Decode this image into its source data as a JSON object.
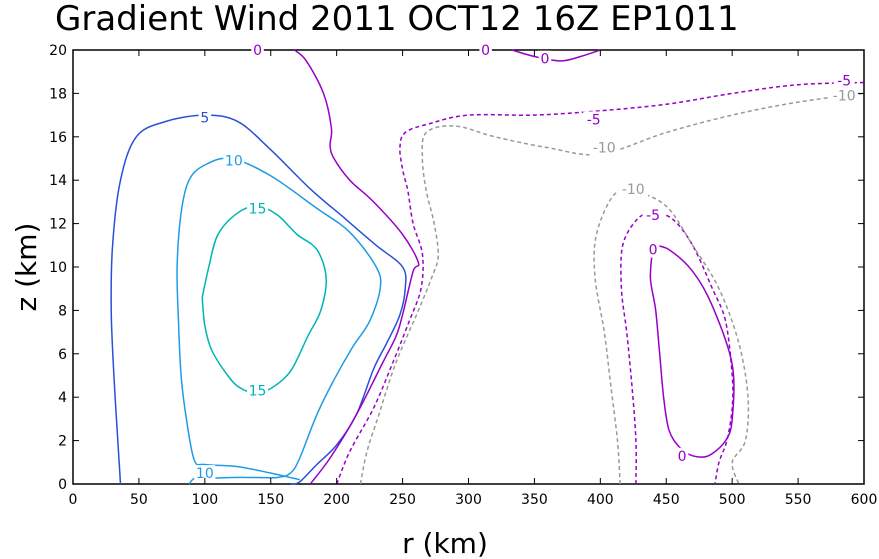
{
  "chart_data": {
    "type": "contour",
    "title": "Gradient Wind 2011 OCT12 16Z  EP1011",
    "xlabel": "r (km)",
    "ylabel": "z (km)",
    "xlim": [
      0,
      600
    ],
    "ylim": [
      0,
      20
    ],
    "xticks": [
      "0",
      "50",
      "100",
      "150",
      "200",
      "250",
      "300",
      "350",
      "400",
      "450",
      "500",
      "550",
      "600"
    ],
    "yticks": [
      "0",
      "2",
      "4",
      "6",
      "8",
      "10",
      "12",
      "14",
      "16",
      "18",
      "20"
    ],
    "contours": [
      {
        "level": 15,
        "name": "contour-15",
        "color": "#00b4b4",
        "dashed": false,
        "closed": true,
        "points": [
          [
            98,
            8.6
          ],
          [
            103,
            10
          ],
          [
            110,
            11.5
          ],
          [
            125,
            12.5
          ],
          [
            140,
            12.8
          ],
          [
            155,
            12.4
          ],
          [
            170,
            11.5
          ],
          [
            185,
            10.8
          ],
          [
            192,
            9.5
          ],
          [
            188,
            8
          ],
          [
            178,
            6.8
          ],
          [
            165,
            5.2
          ],
          [
            150,
            4.4
          ],
          [
            138,
            4.2
          ],
          [
            125,
            4.5
          ],
          [
            115,
            5.2
          ],
          [
            105,
            6.2
          ],
          [
            100,
            7.3
          ],
          [
            98,
            8.6
          ]
        ]
      },
      {
        "level": 10,
        "name": "contour-10",
        "color": "#1e9be6",
        "dashed": false,
        "closed": false,
        "points": [
          [
            172,
            0.2
          ],
          [
            150,
            0.5
          ],
          [
            125,
            0.8
          ],
          [
            100,
            0.9
          ],
          [
            92,
            1.1
          ],
          [
            86,
            3
          ],
          [
            82,
            5
          ],
          [
            80,
            7.5
          ],
          [
            79,
            10
          ],
          [
            82,
            12.5
          ],
          [
            88,
            14
          ],
          [
            100,
            14.7
          ],
          [
            120,
            15
          ],
          [
            150,
            14.2
          ],
          [
            185,
            12.7
          ],
          [
            210,
            11.6
          ],
          [
            230,
            10
          ],
          [
            233,
            9
          ],
          [
            225,
            7.5
          ],
          [
            212,
            6.3
          ],
          [
            198,
            4.8
          ],
          [
            185,
            3.2
          ],
          [
            172,
            1.2
          ],
          [
            165,
            0.5
          ],
          [
            155,
            0.3
          ],
          [
            140,
            0.3
          ],
          [
            120,
            0.3
          ],
          [
            100,
            0.25
          ],
          [
            92,
            0.25
          ],
          [
            88,
            0
          ]
        ]
      },
      {
        "level": 5,
        "name": "contour-5",
        "color": "#2850d8",
        "dashed": false,
        "closed": false,
        "points": [
          [
            36,
            0
          ],
          [
            34,
            2
          ],
          [
            31,
            5
          ],
          [
            29,
            8
          ],
          [
            30,
            11
          ],
          [
            36,
            14
          ],
          [
            48,
            16
          ],
          [
            70,
            16.7
          ],
          [
            100,
            17
          ],
          [
            125,
            16.7
          ],
          [
            150,
            15.4
          ],
          [
            180,
            13.6
          ],
          [
            205,
            12.3
          ],
          [
            230,
            11
          ],
          [
            250,
            10
          ],
          [
            252,
            9
          ],
          [
            248,
            7.8
          ],
          [
            238,
            6.5
          ],
          [
            228,
            5.3
          ],
          [
            215,
            3.2
          ],
          [
            200,
            1.8
          ],
          [
            185,
            0.9
          ],
          [
            172,
            0.1
          ],
          [
            165,
            0
          ]
        ]
      },
      {
        "level": 0,
        "name": "contour-0-left",
        "color": "#9600c8",
        "dashed": false,
        "closed": false,
        "points": [
          [
            180,
            0
          ],
          [
            195,
            1.2
          ],
          [
            215,
            3.2
          ],
          [
            235,
            5.6
          ],
          [
            245,
            6.8
          ],
          [
            250,
            7.8
          ],
          [
            258,
            9.8
          ],
          [
            262,
            10.2
          ],
          [
            250,
            11.5
          ],
          [
            228,
            13
          ],
          [
            210,
            14
          ],
          [
            198,
            15
          ],
          [
            195,
            15.6
          ],
          [
            196,
            16.4
          ],
          [
            190,
            18
          ],
          [
            177,
            19.5
          ],
          [
            168,
            20
          ]
        ]
      },
      {
        "level": 0,
        "name": "contour-0-top",
        "color": "#9600c8",
        "dashed": false,
        "closed": false,
        "points": [
          [
            333,
            20
          ],
          [
            350,
            19.7
          ],
          [
            370,
            19.5
          ],
          [
            385,
            19.7
          ],
          [
            400,
            20
          ]
        ]
      },
      {
        "level": -5,
        "name": "contour-neg5-left",
        "color": "#9600c8",
        "dashed": true,
        "closed": false,
        "points": [
          [
            200,
            0
          ],
          [
            210,
            1.5
          ],
          [
            228,
            3.5
          ],
          [
            242,
            5.5
          ],
          [
            255,
            7.5
          ],
          [
            264,
            9
          ],
          [
            265,
            10.6
          ],
          [
            258,
            12
          ],
          [
            254,
            13.5
          ],
          [
            250,
            14.5
          ],
          [
            248,
            15.5
          ],
          [
            252,
            16.2
          ],
          [
            270,
            16.6
          ],
          [
            300,
            17
          ],
          [
            350,
            17
          ],
          [
            400,
            17.2
          ],
          [
            450,
            17.5
          ],
          [
            500,
            18
          ],
          [
            550,
            18.4
          ],
          [
            600,
            18.5
          ]
        ]
      },
      {
        "level": -10,
        "name": "contour-neg10-left",
        "color": "#999999",
        "dashed": true,
        "closed": false,
        "points": [
          [
            218,
            0
          ],
          [
            223,
            1.5
          ],
          [
            232,
            3.2
          ],
          [
            245,
            5.6
          ],
          [
            262,
            8
          ],
          [
            272,
            9.5
          ],
          [
            277,
            10.5
          ],
          [
            274,
            12
          ],
          [
            268,
            13.5
          ],
          [
            265,
            15
          ],
          [
            268,
            16.2
          ],
          [
            290,
            16.5
          ],
          [
            320,
            16
          ],
          [
            360,
            15.5
          ],
          [
            400,
            15.2
          ],
          [
            450,
            16.2
          ],
          [
            500,
            17
          ],
          [
            550,
            17.6
          ],
          [
            600,
            18
          ]
        ]
      },
      {
        "level": 0,
        "name": "contour-0-right",
        "color": "#9600c8",
        "dashed": false,
        "closed": true,
        "points": [
          [
            440,
            11
          ],
          [
            452,
            10.8
          ],
          [
            470,
            9.8
          ],
          [
            485,
            8.2
          ],
          [
            500,
            5.5
          ],
          [
            500,
            3
          ],
          [
            495,
            2
          ],
          [
            482,
            1.3
          ],
          [
            470,
            1.3
          ],
          [
            460,
            1.7
          ],
          [
            452,
            2.5
          ],
          [
            448,
            4
          ],
          [
            445,
            6
          ],
          [
            442,
            8
          ],
          [
            438,
            9.5
          ],
          [
            440,
            11
          ]
        ]
      },
      {
        "level": -5,
        "name": "contour-neg5-right",
        "color": "#9600c8",
        "dashed": true,
        "closed": false,
        "points": [
          [
            427,
            0
          ],
          [
            427,
            2
          ],
          [
            424,
            4.5
          ],
          [
            420,
            7
          ],
          [
            416,
            9
          ],
          [
            417,
            11
          ],
          [
            428,
            12.2
          ],
          [
            440,
            12.5
          ],
          [
            455,
            12.2
          ],
          [
            470,
            11
          ],
          [
            485,
            9
          ],
          [
            495,
            7.5
          ],
          [
            500,
            5
          ],
          [
            500,
            3.5
          ],
          [
            496,
            2
          ],
          [
            490,
            1
          ],
          [
            487,
            0
          ]
        ]
      },
      {
        "level": -10,
        "name": "contour-neg10-right",
        "color": "#999999",
        "dashed": true,
        "closed": false,
        "points": [
          [
            415,
            0
          ],
          [
            413,
            2
          ],
          [
            408,
            4.5
          ],
          [
            403,
            7
          ],
          [
            396,
            9.5
          ],
          [
            397,
            11.5
          ],
          [
            410,
            13.3
          ],
          [
            425,
            13.5
          ],
          [
            450,
            12.8
          ],
          [
            470,
            11
          ],
          [
            490,
            9
          ],
          [
            505,
            6.5
          ],
          [
            512,
            4
          ],
          [
            510,
            2
          ],
          [
            500,
            1
          ],
          [
            505,
            0
          ]
        ]
      }
    ],
    "contour_labels": [
      {
        "text": "15",
        "x": 140,
        "y": 12.7,
        "color": "#00b4b4"
      },
      {
        "text": "15",
        "x": 140,
        "y": 4.3,
        "color": "#00b4b4"
      },
      {
        "text": "10",
        "x": 122,
        "y": 14.9,
        "color": "#1e9be6"
      },
      {
        "text": "10",
        "x": 100,
        "y": 0.5,
        "color": "#1e9be6"
      },
      {
        "text": "5",
        "x": 100,
        "y": 16.9,
        "color": "#2850d8"
      },
      {
        "text": "0",
        "x": 140,
        "y": 20,
        "color": "#9600c8"
      },
      {
        "text": "0",
        "x": 313,
        "y": 20,
        "color": "#9600c8"
      },
      {
        "text": "0",
        "x": 358,
        "y": 19.6,
        "color": "#9600c8"
      },
      {
        "text": "-5",
        "x": 395,
        "y": 16.8,
        "color": "#9600c8"
      },
      {
        "text": "-10",
        "x": 403,
        "y": 15.5,
        "color": "#999999"
      },
      {
        "text": "-5",
        "x": 585,
        "y": 18.6,
        "color": "#9600c8"
      },
      {
        "text": "-10",
        "x": 585,
        "y": 17.9,
        "color": "#999999"
      },
      {
        "text": "-10",
        "x": 425,
        "y": 13.6,
        "color": "#999999"
      },
      {
        "text": "-5",
        "x": 440,
        "y": 12.4,
        "color": "#9600c8"
      },
      {
        "text": "0",
        "x": 440,
        "y": 10.8,
        "color": "#9600c8"
      },
      {
        "text": "0",
        "x": 462,
        "y": 1.3,
        "color": "#9600c8"
      }
    ]
  }
}
